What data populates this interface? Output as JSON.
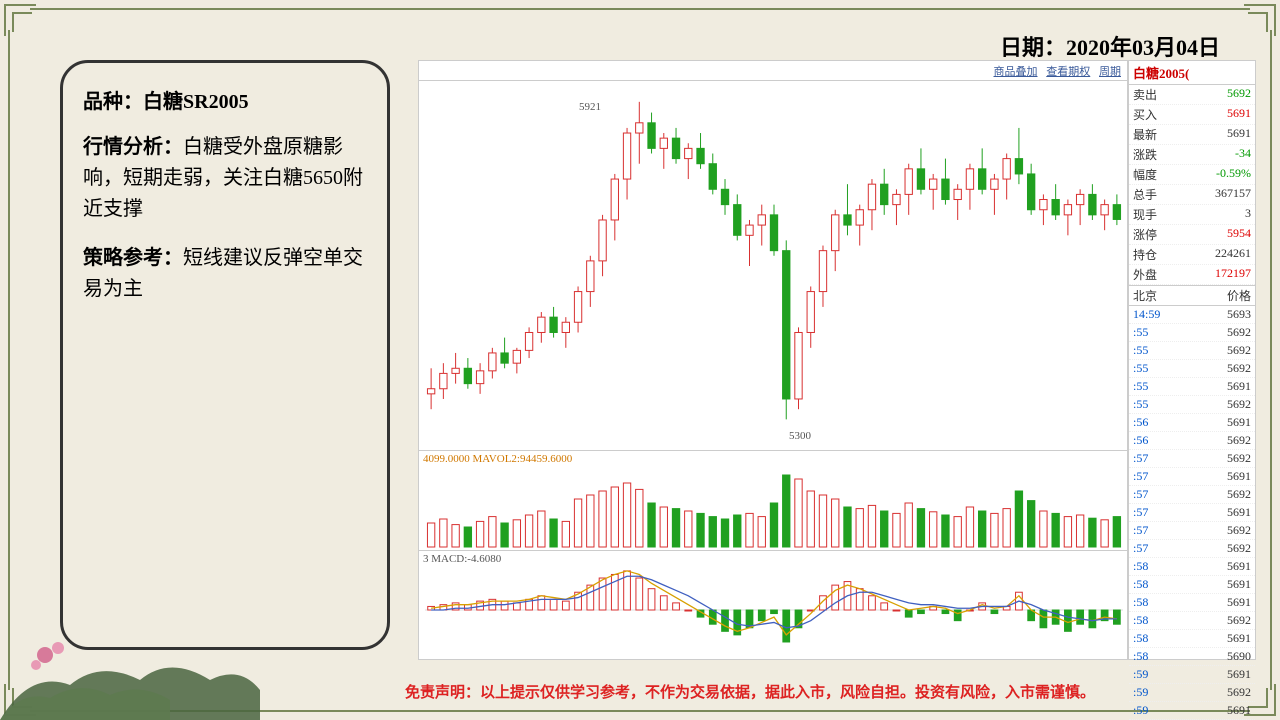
{
  "header": {
    "date_label": "日期：",
    "date_value": "2020年03月04日"
  },
  "info": {
    "product_label": "品种：",
    "product_value": "白糖SR2005",
    "analysis_label": "行情分析：",
    "analysis_text": "白糖受外盘原糖影响，短期走弱，关注白糖5650附近支撑",
    "strategy_label": "策略参考：",
    "strategy_text": "短线建议反弹空单交易为主"
  },
  "toolbar": {
    "a": "商品叠加",
    "b": "查看期权",
    "c": "周期"
  },
  "chart": {
    "title": "白糖2005(",
    "candle": {
      "high_label": "5921",
      "low_label": "5300",
      "y_min": 5250,
      "y_max": 5950,
      "up_color": "#d83030",
      "down_color": "#20a020",
      "wick_color_up": "#d83030",
      "wick_color_down": "#20a020",
      "bg": "#ffffff",
      "candles": [
        [
          5350,
          5320,
          5400,
          5360
        ],
        [
          5360,
          5340,
          5410,
          5390
        ],
        [
          5390,
          5370,
          5430,
          5400
        ],
        [
          5400,
          5360,
          5420,
          5370
        ],
        [
          5370,
          5350,
          5410,
          5395
        ],
        [
          5395,
          5380,
          5440,
          5430
        ],
        [
          5430,
          5400,
          5460,
          5410
        ],
        [
          5410,
          5390,
          5440,
          5435
        ],
        [
          5435,
          5420,
          5480,
          5470
        ],
        [
          5470,
          5450,
          5510,
          5500
        ],
        [
          5500,
          5460,
          5520,
          5470
        ],
        [
          5470,
          5440,
          5500,
          5490
        ],
        [
          5490,
          5470,
          5560,
          5550
        ],
        [
          5550,
          5520,
          5620,
          5610
        ],
        [
          5610,
          5580,
          5700,
          5690
        ],
        [
          5690,
          5650,
          5780,
          5770
        ],
        [
          5770,
          5730,
          5870,
          5860
        ],
        [
          5860,
          5800,
          5921,
          5880
        ],
        [
          5880,
          5820,
          5900,
          5830
        ],
        [
          5830,
          5790,
          5860,
          5850
        ],
        [
          5850,
          5800,
          5870,
          5810
        ],
        [
          5810,
          5770,
          5840,
          5830
        ],
        [
          5830,
          5790,
          5860,
          5800
        ],
        [
          5800,
          5740,
          5820,
          5750
        ],
        [
          5750,
          5700,
          5770,
          5720
        ],
        [
          5720,
          5650,
          5740,
          5660
        ],
        [
          5660,
          5600,
          5690,
          5680
        ],
        [
          5680,
          5640,
          5720,
          5700
        ],
        [
          5700,
          5620,
          5720,
          5630
        ],
        [
          5630,
          5300,
          5650,
          5340
        ],
        [
          5340,
          5320,
          5480,
          5470
        ],
        [
          5470,
          5440,
          5560,
          5550
        ],
        [
          5550,
          5520,
          5640,
          5630
        ],
        [
          5630,
          5590,
          5710,
          5700
        ],
        [
          5700,
          5660,
          5760,
          5680
        ],
        [
          5680,
          5640,
          5720,
          5710
        ],
        [
          5710,
          5670,
          5770,
          5760
        ],
        [
          5760,
          5700,
          5790,
          5720
        ],
        [
          5720,
          5680,
          5750,
          5740
        ],
        [
          5740,
          5700,
          5800,
          5790
        ],
        [
          5790,
          5740,
          5830,
          5750
        ],
        [
          5750,
          5710,
          5780,
          5770
        ],
        [
          5770,
          5720,
          5810,
          5730
        ],
        [
          5730,
          5690,
          5760,
          5750
        ],
        [
          5750,
          5710,
          5800,
          5790
        ],
        [
          5790,
          5740,
          5830,
          5750
        ],
        [
          5750,
          5700,
          5780,
          5770
        ],
        [
          5770,
          5730,
          5820,
          5810
        ],
        [
          5810,
          5760,
          5870,
          5780
        ],
        [
          5780,
          5700,
          5800,
          5710
        ],
        [
          5710,
          5680,
          5740,
          5730
        ],
        [
          5730,
          5690,
          5760,
          5700
        ],
        [
          5700,
          5660,
          5730,
          5720
        ],
        [
          5720,
          5680,
          5750,
          5740
        ],
        [
          5740,
          5690,
          5760,
          5700
        ],
        [
          5700,
          5670,
          5730,
          5720
        ],
        [
          5720,
          5680,
          5740,
          5691
        ]
      ]
    },
    "volume": {
      "label": "4099.0000  MAVOL2:94459.6000",
      "label_color": "#d07800",
      "up_color": "#d83030",
      "down_color": "#20a020",
      "max": 100,
      "bars": [
        30,
        35,
        28,
        25,
        32,
        38,
        30,
        34,
        40,
        45,
        35,
        32,
        60,
        65,
        70,
        75,
        80,
        72,
        55,
        50,
        48,
        45,
        42,
        38,
        35,
        40,
        42,
        38,
        55,
        90,
        85,
        70,
        65,
        60,
        50,
        48,
        52,
        45,
        42,
        55,
        48,
        44,
        40,
        38,
        50,
        45,
        42,
        48,
        70,
        58,
        45,
        42,
        38,
        40,
        36,
        34,
        38
      ]
    },
    "macd": {
      "label": "3  MACD:-4.6080",
      "label_color": "#555",
      "dif_color": "#d8a000",
      "dea_color": "#4060c0",
      "hist_up": "#d83030",
      "hist_down": "#20a020",
      "hist": [
        2,
        3,
        4,
        3,
        5,
        6,
        5,
        4,
        6,
        8,
        6,
        5,
        10,
        14,
        18,
        20,
        22,
        18,
        12,
        8,
        4,
        0,
        -4,
        -8,
        -12,
        -14,
        -10,
        -6,
        -2,
        -18,
        -10,
        0,
        8,
        14,
        16,
        12,
        8,
        4,
        0,
        -4,
        -2,
        2,
        -2,
        -6,
        0,
        4,
        -2,
        2,
        10,
        -6,
        -10,
        -8,
        -12,
        -8,
        -10,
        -6,
        -8
      ],
      "dif": [
        1,
        2,
        3,
        3,
        4,
        5,
        5,
        5,
        6,
        8,
        7,
        6,
        9,
        13,
        17,
        20,
        22,
        20,
        15,
        11,
        7,
        3,
        -1,
        -5,
        -9,
        -12,
        -10,
        -7,
        -4,
        -14,
        -8,
        -2,
        5,
        11,
        14,
        12,
        9,
        6,
        3,
        0,
        1,
        2,
        1,
        -2,
        0,
        3,
        1,
        2,
        8,
        0,
        -4,
        -4,
        -7,
        -5,
        -6,
        -4,
        -5
      ],
      "dea": [
        0,
        0,
        1,
        1,
        2,
        3,
        3,
        4,
        5,
        6,
        6,
        6,
        7,
        10,
        13,
        16,
        19,
        19,
        17,
        14,
        11,
        8,
        4,
        0,
        -4,
        -8,
        -9,
        -8,
        -7,
        -10,
        -9,
        -6,
        -1,
        4,
        8,
        10,
        10,
        8,
        6,
        4,
        3,
        3,
        2,
        1,
        1,
        2,
        2,
        2,
        5,
        3,
        0,
        -2,
        -4,
        -5,
        -6,
        -5,
        -5
      ]
    }
  },
  "side": {
    "title": "白糖2005(",
    "rows1": [
      {
        "k": "卖出",
        "v": "5692",
        "c": "grn"
      },
      {
        "k": "买入",
        "v": "5691",
        "c": "red"
      },
      {
        "k": "最新",
        "v": "5691",
        "c": ""
      },
      {
        "k": "涨跌",
        "v": "-34",
        "c": "grn"
      },
      {
        "k": "幅度",
        "v": "-0.59%",
        "c": "grn"
      },
      {
        "k": "总手",
        "v": "367157",
        "c": ""
      },
      {
        "k": "现手",
        "v": "3",
        "c": ""
      },
      {
        "k": "涨停",
        "v": "5954",
        "c": "red"
      },
      {
        "k": "持仓",
        "v": "224261",
        "c": ""
      },
      {
        "k": "外盘",
        "v": "172197",
        "c": "red"
      }
    ],
    "hdr2": {
      "k": "北京",
      "v": "价格"
    },
    "rows2": [
      {
        "k": "14:59",
        "v": "5693",
        "c": "blu"
      },
      {
        "k": ":55",
        "v": "5692"
      },
      {
        "k": ":55",
        "v": "5692"
      },
      {
        "k": ":55",
        "v": "5692"
      },
      {
        "k": ":55",
        "v": "5691"
      },
      {
        "k": ":55",
        "v": "5692"
      },
      {
        "k": ":56",
        "v": "5691"
      },
      {
        "k": ":56",
        "v": "5692"
      },
      {
        "k": ":57",
        "v": "5692"
      },
      {
        "k": ":57",
        "v": "5691"
      },
      {
        "k": ":57",
        "v": "5692"
      },
      {
        "k": ":57",
        "v": "5691"
      },
      {
        "k": ":57",
        "v": "5692"
      },
      {
        "k": ":57",
        "v": "5692"
      },
      {
        "k": ":58",
        "v": "5691"
      },
      {
        "k": ":58",
        "v": "5691"
      },
      {
        "k": ":58",
        "v": "5691"
      },
      {
        "k": ":58",
        "v": "5692"
      },
      {
        "k": ":58",
        "v": "5691"
      },
      {
        "k": ":58",
        "v": "5690"
      },
      {
        "k": ":59",
        "v": "5691"
      },
      {
        "k": ":59",
        "v": "5692"
      },
      {
        "k": ":59",
        "v": "5691"
      }
    ]
  },
  "disclaimer": "免责声明：以上提示仅供学习参考，不作为交易依据，据此入市，风险自担。投资有风险，入市需谨慎。"
}
